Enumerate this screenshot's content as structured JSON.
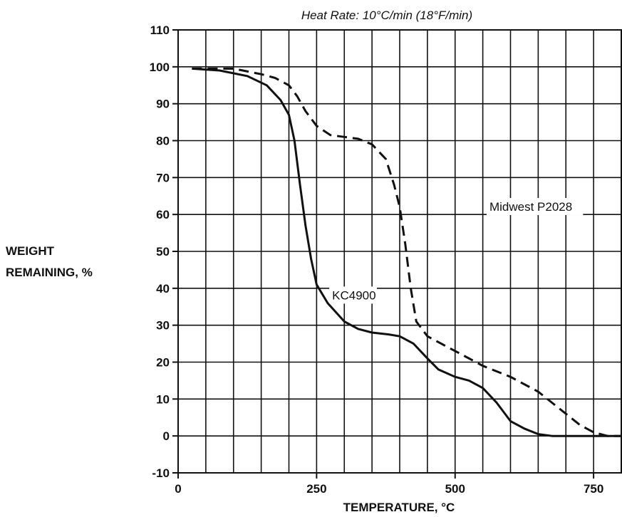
{
  "chart_data": {
    "type": "line",
    "title": "Heat Rate: 10°C/min (18°F/min)",
    "xlabel": "TEMPERATURE, °C",
    "ylabel_line1": "WEIGHT",
    "ylabel_line2": "REMAINING, %",
    "xlim": [
      0,
      800
    ],
    "ylim": [
      -10,
      110
    ],
    "x_ticks": [
      0,
      250,
      500,
      750
    ],
    "x_tick_labels": [
      "0",
      "250",
      "500",
      "750"
    ],
    "y_ticks": [
      -10,
      0,
      10,
      20,
      30,
      40,
      50,
      60,
      70,
      80,
      90,
      100,
      110
    ],
    "y_tick_labels": [
      "-10",
      "0",
      "10",
      "20",
      "30",
      "40",
      "50",
      "60",
      "70",
      "80",
      "90",
      "100",
      "110"
    ],
    "grid": true,
    "grid_step_x": 50,
    "grid_step_y": 10,
    "series": [
      {
        "name": "KC4900",
        "style": "solid",
        "color": "#111111",
        "points": [
          [
            25,
            99.5
          ],
          [
            75,
            99
          ],
          [
            125,
            97.5
          ],
          [
            160,
            95
          ],
          [
            185,
            91
          ],
          [
            200,
            87
          ],
          [
            210,
            80
          ],
          [
            220,
            68
          ],
          [
            230,
            57
          ],
          [
            240,
            48
          ],
          [
            250,
            41
          ],
          [
            270,
            36
          ],
          [
            300,
            31
          ],
          [
            325,
            29
          ],
          [
            350,
            28
          ],
          [
            380,
            27.5
          ],
          [
            400,
            27
          ],
          [
            425,
            25
          ],
          [
            450,
            21
          ],
          [
            470,
            18
          ],
          [
            500,
            16
          ],
          [
            525,
            15
          ],
          [
            550,
            13
          ],
          [
            575,
            9
          ],
          [
            600,
            4
          ],
          [
            625,
            2
          ],
          [
            650,
            0.5
          ],
          [
            675,
            0
          ],
          [
            700,
            0
          ],
          [
            775,
            0
          ],
          [
            800,
            0
          ]
        ]
      },
      {
        "name": "Midwest P2028",
        "style": "dashed",
        "color": "#111111",
        "points": [
          [
            25,
            99.5
          ],
          [
            100,
            99.5
          ],
          [
            150,
            98
          ],
          [
            175,
            97
          ],
          [
            200,
            95
          ],
          [
            215,
            92
          ],
          [
            230,
            88
          ],
          [
            250,
            84
          ],
          [
            275,
            81.5
          ],
          [
            300,
            81
          ],
          [
            325,
            80.5
          ],
          [
            350,
            79
          ],
          [
            375,
            75
          ],
          [
            390,
            68
          ],
          [
            400,
            62
          ],
          [
            410,
            52
          ],
          [
            420,
            40
          ],
          [
            430,
            31
          ],
          [
            450,
            27
          ],
          [
            475,
            25
          ],
          [
            500,
            23
          ],
          [
            550,
            19
          ],
          [
            600,
            16
          ],
          [
            650,
            12
          ],
          [
            675,
            9
          ],
          [
            700,
            6
          ],
          [
            725,
            3
          ],
          [
            750,
            1
          ],
          [
            775,
            0
          ],
          [
            800,
            0
          ]
        ]
      }
    ],
    "annotations": [
      {
        "text": "Midwest P2028",
        "x": 562,
        "y": 61
      },
      {
        "text": "KC4900",
        "x": 278,
        "y": 37
      }
    ]
  }
}
